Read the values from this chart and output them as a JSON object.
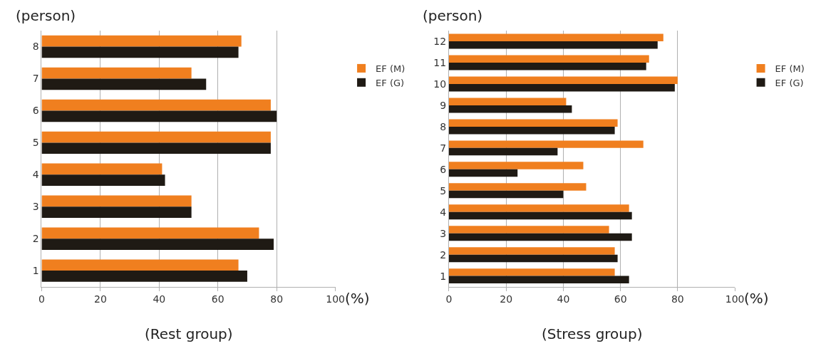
{
  "chart_data": [
    {
      "type": "bar",
      "orientation": "horizontal",
      "title": "(Rest group)",
      "xlabel": "(%)",
      "ylabel": "(person)",
      "categories": [
        "8",
        "7",
        "6",
        "5",
        "4",
        "3",
        "2",
        "1"
      ],
      "series": [
        {
          "name": "EF (M)",
          "color": "#f07f1f",
          "values": [
            68,
            51,
            78,
            78,
            41,
            51,
            74,
            67
          ]
        },
        {
          "name": "EF (G)",
          "color": "#1f1a14",
          "values": [
            67,
            56,
            80,
            78,
            42,
            51,
            79,
            70
          ]
        }
      ],
      "xlim": [
        0,
        100
      ],
      "xticks": [
        0,
        20,
        40,
        60,
        80,
        100
      ],
      "grid": "x",
      "legend": "right"
    },
    {
      "type": "bar",
      "orientation": "horizontal",
      "title": "(Stress group)",
      "xlabel": "(%)",
      "ylabel": "(person)",
      "categories": [
        "12",
        "11",
        "10",
        "9",
        "8",
        "7",
        "6",
        "5",
        "4",
        "3",
        "2",
        "1"
      ],
      "series": [
        {
          "name": "EF (M)",
          "color": "#f07f1f",
          "values": [
            75,
            70,
            80,
            41,
            59,
            68,
            47,
            48,
            63,
            56,
            58,
            58
          ]
        },
        {
          "name": "EF (G)",
          "color": "#1f1a14",
          "values": [
            73,
            69,
            79,
            43,
            58,
            38,
            24,
            40,
            64,
            64,
            59,
            63
          ]
        }
      ],
      "xlim": [
        0,
        100
      ],
      "xticks": [
        0,
        20,
        40,
        60,
        80,
        100
      ],
      "grid": "x",
      "legend": "right"
    }
  ]
}
